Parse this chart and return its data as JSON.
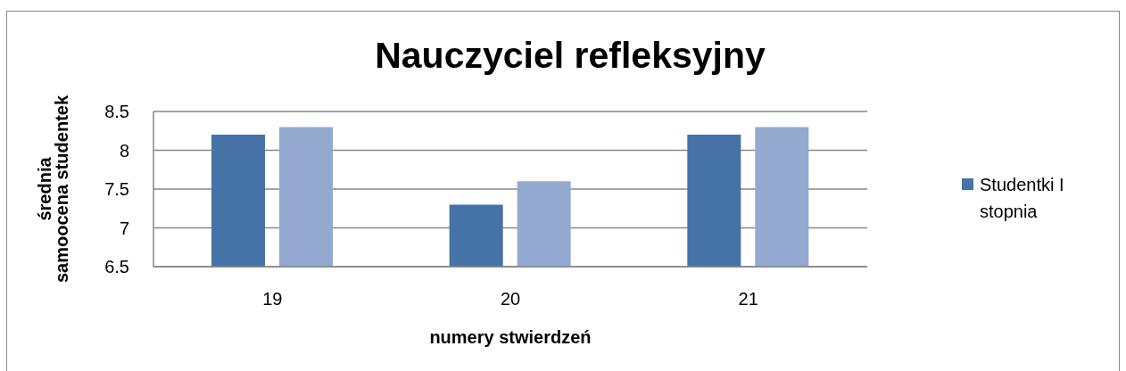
{
  "chart_data": {
    "type": "bar",
    "title": "Nauczyciel refleksyjny",
    "xlabel": "numery stwierdzeń",
    "ylabel": "średnia\nsamoocena studentek",
    "categories": [
      "19",
      "20",
      "21"
    ],
    "series": [
      {
        "name": "Studentki I stopnia",
        "color": "#4572a7",
        "values": [
          8.2,
          7.3,
          8.2
        ]
      },
      {
        "color": "#93a9cf",
        "values": [
          8.3,
          7.6,
          8.3
        ]
      }
    ],
    "ylim": [
      6.5,
      8.5
    ],
    "yticks": [
      6.5,
      7,
      7.5,
      8,
      8.5
    ],
    "grid": "y",
    "legend": "right"
  }
}
